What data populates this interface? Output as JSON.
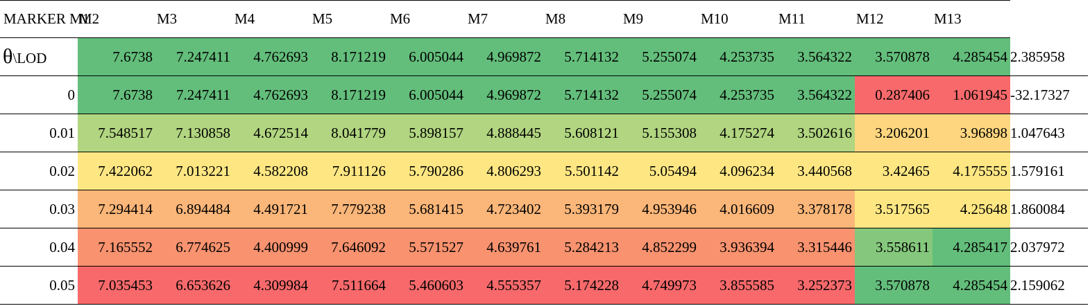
{
  "header": {
    "first": "MARKER",
    "markers": [
      "M1",
      "M2",
      "M3",
      "M4",
      "M5",
      "M6",
      "M7",
      "M8",
      "M9",
      "M10",
      "M11",
      "M12",
      "M13"
    ]
  },
  "corner_label": {
    "symbol": "θ",
    "text": "\\LOD"
  },
  "colors": {
    "dark_green": "#63be7b",
    "light_green": "#b1d580",
    "yellow": "#fee783",
    "orange": "#fbb679",
    "salmon": "#f8926f",
    "red": "#f8696b",
    "pale_yellow_green": "#d7df81",
    "mid_green": "#85c87d",
    "yellow_orange": "#fdd67f"
  },
  "rows": [
    {
      "label": "",
      "values": [
        "7.6738",
        "7.247411",
        "4.762693",
        "8.171219",
        "6.005044",
        "4.969872",
        "5.714132",
        "5.255074",
        "4.253735",
        "3.564322",
        "3.570878",
        "4.285454",
        "2.385958"
      ],
      "colors": [
        "#63be7b",
        "#63be7b",
        "#63be7b",
        "#63be7b",
        "#63be7b",
        "#63be7b",
        "#63be7b",
        "#63be7b",
        "#63be7b",
        "#63be7b",
        "#63be7b",
        "#63be7b",
        "#63be7b"
      ]
    },
    {
      "label": "0",
      "values": [
        "7.6738",
        "7.247411",
        "4.762693",
        "8.171219",
        "6.005044",
        "4.969872",
        "5.714132",
        "5.255074",
        "4.253735",
        "3.564322",
        "0.287406",
        "1.061945",
        "-32.17327"
      ],
      "colors": [
        "#63be7b",
        "#63be7b",
        "#63be7b",
        "#63be7b",
        "#63be7b",
        "#63be7b",
        "#63be7b",
        "#63be7b",
        "#63be7b",
        "#63be7b",
        "#f8696b",
        "#f8696b",
        "#f8696b"
      ]
    },
    {
      "label": "0.01",
      "values": [
        "7.548517",
        "7.130858",
        "4.672514",
        "8.041779",
        "5.898157",
        "4.888445",
        "5.608121",
        "5.155308",
        "4.175274",
        "3.502616",
        "3.206201",
        "3.96898",
        "1.047643"
      ],
      "colors": [
        "#b1d580",
        "#b1d580",
        "#b1d580",
        "#b1d580",
        "#b1d580",
        "#b1d580",
        "#b1d580",
        "#b1d580",
        "#b1d580",
        "#b1d580",
        "#fdd67f",
        "#fdd67f",
        "#fee783"
      ]
    },
    {
      "label": "0.02",
      "values": [
        "7.422062",
        "7.013221",
        "4.582208",
        "7.911126",
        "5.790286",
        "4.806293",
        "5.501142",
        "5.05494",
        "4.096234",
        "3.440568",
        "3.42465",
        "4.175555",
        "1.579161"
      ],
      "colors": [
        "#fee783",
        "#fee783",
        "#fee783",
        "#fee783",
        "#fee783",
        "#fee783",
        "#fee783",
        "#fee783",
        "#fee783",
        "#fee783",
        "#fee783",
        "#fee783",
        "#fee783"
      ]
    },
    {
      "label": "0.03",
      "values": [
        "7.294414",
        "6.894484",
        "4.491721",
        "7.779238",
        "5.681415",
        "4.723402",
        "5.393179",
        "4.953946",
        "4.016609",
        "3.378178",
        "3.517565",
        "4.25648",
        "1.860084"
      ],
      "colors": [
        "#fbb679",
        "#fbb679",
        "#fbb679",
        "#fbb679",
        "#fbb679",
        "#fbb679",
        "#fbb679",
        "#fbb679",
        "#fbb679",
        "#fbb679",
        "#fee783",
        "#fee783",
        "#fee783"
      ]
    },
    {
      "label": "0.04",
      "values": [
        "7.165552",
        "6.774625",
        "4.400999",
        "7.646092",
        "5.571527",
        "4.639761",
        "5.284213",
        "4.852299",
        "3.936394",
        "3.315446",
        "3.558611",
        "4.285417",
        "2.037972"
      ],
      "colors": [
        "#f8926f",
        "#f8926f",
        "#f8926f",
        "#f8926f",
        "#f8926f",
        "#f8926f",
        "#f8926f",
        "#f8926f",
        "#f8926f",
        "#f8926f",
        "#85c87d",
        "#63be7b",
        "#d7df81"
      ]
    },
    {
      "label": "0.05",
      "values": [
        "7.035453",
        "6.653626",
        "4.309984",
        "7.511664",
        "5.460603",
        "4.555357",
        "5.174228",
        "4.749973",
        "3.855585",
        "3.252373",
        "3.570878",
        "4.285454",
        "2.159062"
      ],
      "colors": [
        "#f8696b",
        "#f8696b",
        "#f8696b",
        "#f8696b",
        "#f8696b",
        "#f8696b",
        "#f8696b",
        "#f8696b",
        "#f8696b",
        "#f8696b",
        "#63be7b",
        "#63be7b",
        "#b1d580"
      ]
    }
  ]
}
